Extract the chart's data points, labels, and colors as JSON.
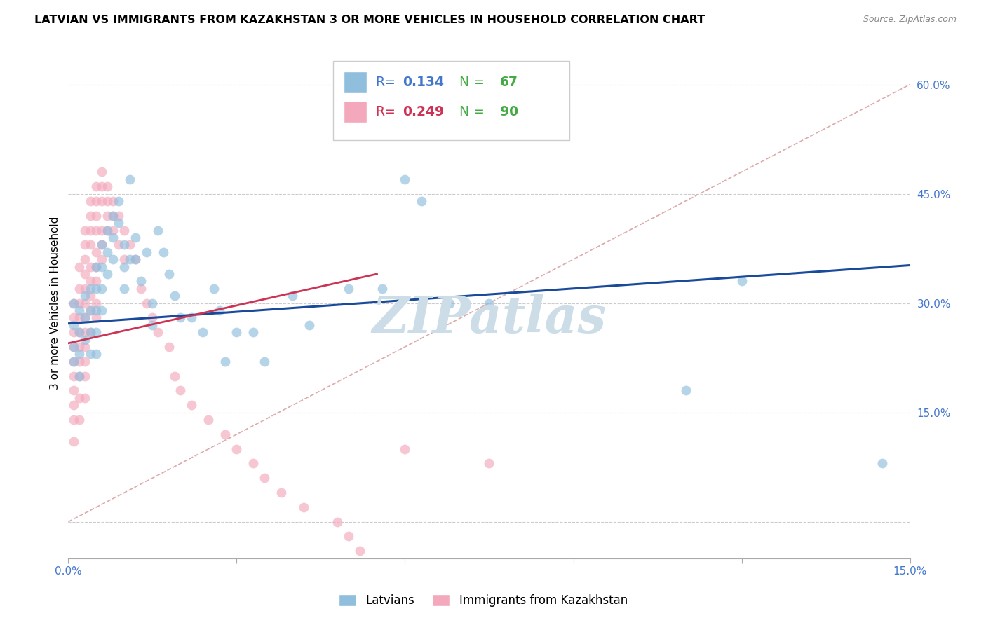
{
  "title": "LATVIAN VS IMMIGRANTS FROM KAZAKHSTAN 3 OR MORE VEHICLES IN HOUSEHOLD CORRELATION CHART",
  "source": "Source: ZipAtlas.com",
  "ylabel": "3 or more Vehicles in Household",
  "xmin": 0.0,
  "xmax": 0.15,
  "ymin": -0.05,
  "ymax": 0.65,
  "ytick_vals": [
    0.0,
    0.15,
    0.3,
    0.45,
    0.6
  ],
  "ytick_labels": [
    "",
    "15.0%",
    "30.0%",
    "45.0%",
    "60.0%"
  ],
  "xtick_vals": [
    0.0,
    0.03,
    0.06,
    0.09,
    0.12,
    0.15
  ],
  "xtick_labels": [
    "0.0%",
    "",
    "",
    "",
    "",
    "15.0%"
  ],
  "blue_color": "#90bedd",
  "pink_color": "#f4a8bc",
  "trend_blue_color": "#1a4a9a",
  "trend_pink_color": "#cc3355",
  "ref_diag_color": "#ddaaaa",
  "grid_color": "#cccccc",
  "axis_color": "#4477cc",
  "watermark_text": "ZIPatlas",
  "watermark_color": "#ccdde8",
  "legend_R1": "0.134",
  "legend_N1": "67",
  "legend_R2": "0.249",
  "legend_N2": "90",
  "legend_color_R1": "#4477cc",
  "legend_color_R2": "#cc3355",
  "legend_color_N": "#44aa44",
  "blue_trend_x0": 0.0,
  "blue_trend_y0": 0.272,
  "blue_trend_x1": 0.15,
  "blue_trend_y1": 0.352,
  "pink_trend_x0": 0.0,
  "pink_trend_y0": 0.245,
  "pink_trend_x1": 0.055,
  "pink_trend_y1": 0.34,
  "latvians_x": [
    0.001,
    0.001,
    0.001,
    0.001,
    0.002,
    0.002,
    0.002,
    0.002,
    0.003,
    0.003,
    0.003,
    0.004,
    0.004,
    0.004,
    0.004,
    0.005,
    0.005,
    0.005,
    0.005,
    0.005,
    0.006,
    0.006,
    0.006,
    0.006,
    0.007,
    0.007,
    0.007,
    0.008,
    0.008,
    0.008,
    0.009,
    0.009,
    0.01,
    0.01,
    0.01,
    0.011,
    0.011,
    0.012,
    0.012,
    0.013,
    0.014,
    0.015,
    0.015,
    0.016,
    0.017,
    0.018,
    0.019,
    0.02,
    0.022,
    0.024,
    0.026,
    0.027,
    0.028,
    0.03,
    0.033,
    0.035,
    0.04,
    0.043,
    0.05,
    0.056,
    0.06,
    0.063,
    0.068,
    0.075,
    0.11,
    0.12,
    0.145
  ],
  "latvians_y": [
    0.3,
    0.27,
    0.24,
    0.22,
    0.29,
    0.26,
    0.23,
    0.2,
    0.31,
    0.28,
    0.25,
    0.32,
    0.29,
    0.26,
    0.23,
    0.35,
    0.32,
    0.29,
    0.26,
    0.23,
    0.38,
    0.35,
    0.32,
    0.29,
    0.4,
    0.37,
    0.34,
    0.42,
    0.39,
    0.36,
    0.44,
    0.41,
    0.38,
    0.35,
    0.32,
    0.47,
    0.36,
    0.39,
    0.36,
    0.33,
    0.37,
    0.3,
    0.27,
    0.4,
    0.37,
    0.34,
    0.31,
    0.28,
    0.28,
    0.26,
    0.32,
    0.29,
    0.22,
    0.26,
    0.26,
    0.22,
    0.31,
    0.27,
    0.32,
    0.32,
    0.47,
    0.44,
    0.3,
    0.3,
    0.18,
    0.33,
    0.08
  ],
  "kazakhstan_x": [
    0.001,
    0.001,
    0.001,
    0.001,
    0.001,
    0.001,
    0.001,
    0.001,
    0.001,
    0.001,
    0.002,
    0.002,
    0.002,
    0.002,
    0.002,
    0.002,
    0.002,
    0.002,
    0.002,
    0.002,
    0.003,
    0.003,
    0.003,
    0.003,
    0.003,
    0.003,
    0.003,
    0.003,
    0.003,
    0.003,
    0.003,
    0.003,
    0.004,
    0.004,
    0.004,
    0.004,
    0.004,
    0.004,
    0.004,
    0.004,
    0.004,
    0.005,
    0.005,
    0.005,
    0.005,
    0.005,
    0.005,
    0.005,
    0.005,
    0.005,
    0.006,
    0.006,
    0.006,
    0.006,
    0.006,
    0.006,
    0.007,
    0.007,
    0.007,
    0.007,
    0.008,
    0.008,
    0.008,
    0.009,
    0.009,
    0.01,
    0.01,
    0.011,
    0.012,
    0.013,
    0.014,
    0.015,
    0.016,
    0.018,
    0.019,
    0.02,
    0.022,
    0.025,
    0.028,
    0.03,
    0.033,
    0.035,
    0.038,
    0.042,
    0.048,
    0.05,
    0.052,
    0.055,
    0.06,
    0.075
  ],
  "kazakhstan_y": [
    0.3,
    0.28,
    0.26,
    0.24,
    0.22,
    0.2,
    0.18,
    0.16,
    0.14,
    0.11,
    0.35,
    0.32,
    0.3,
    0.28,
    0.26,
    0.24,
    0.22,
    0.2,
    0.17,
    0.14,
    0.4,
    0.38,
    0.36,
    0.34,
    0.32,
    0.3,
    0.28,
    0.26,
    0.24,
    0.22,
    0.2,
    0.17,
    0.44,
    0.42,
    0.4,
    0.38,
    0.35,
    0.33,
    0.31,
    0.29,
    0.26,
    0.46,
    0.44,
    0.42,
    0.4,
    0.37,
    0.35,
    0.33,
    0.3,
    0.28,
    0.48,
    0.46,
    0.44,
    0.4,
    0.38,
    0.36,
    0.46,
    0.44,
    0.42,
    0.4,
    0.44,
    0.42,
    0.4,
    0.42,
    0.38,
    0.4,
    0.36,
    0.38,
    0.36,
    0.32,
    0.3,
    0.28,
    0.26,
    0.24,
    0.2,
    0.18,
    0.16,
    0.14,
    0.12,
    0.1,
    0.08,
    0.06,
    0.04,
    0.02,
    0.0,
    -0.02,
    -0.04,
    0.62,
    0.1,
    0.08
  ]
}
